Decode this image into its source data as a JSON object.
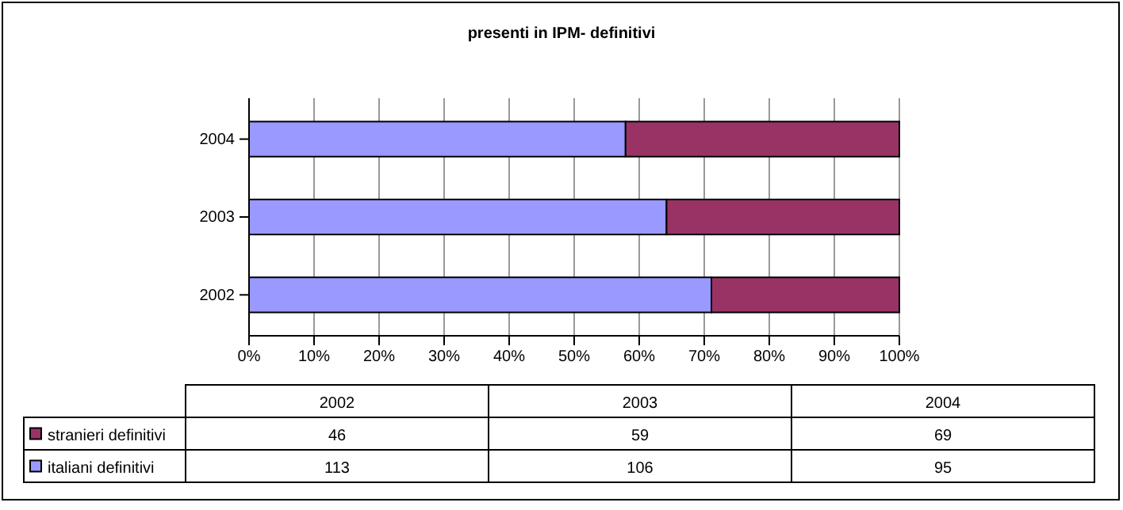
{
  "chart_data": [
    {
      "type": "bar",
      "title": "presenti in IPM- definitivi",
      "orientation": "horizontal",
      "stacked": true,
      "categories": [
        "2004",
        "2003",
        "2002"
      ],
      "series": [
        {
          "color": "#9999ff",
          "values": [
            57.9,
            64.2,
            71.1
          ]
        },
        {
          "color": "#993366",
          "values": [
            42.1,
            35.8,
            28.9
          ]
        }
      ],
      "xlim": [
        0,
        100
      ],
      "xticks": [
        {
          "value": 0,
          "label": "0%"
        },
        {
          "value": 10,
          "label": "10%"
        },
        {
          "value": 20,
          "label": "20%"
        },
        {
          "value": 30,
          "label": "30%"
        },
        {
          "value": 40,
          "label": "40%"
        },
        {
          "value": 50,
          "label": "50%"
        },
        {
          "value": 60,
          "label": "60%"
        },
        {
          "value": 70,
          "label": "70%"
        },
        {
          "value": 80,
          "label": "80%"
        },
        {
          "value": 90,
          "label": "90%"
        },
        {
          "value": 100,
          "label": "100%"
        }
      ],
      "grid": "x"
    },
    {
      "type": "other",
      "categories": [
        "2002",
        "2003",
        "2004"
      ],
      "series": [
        {
          "name": "stranieri definitivi",
          "color": "#993366",
          "values": [
            46,
            59,
            69
          ]
        },
        {
          "name": "italiani definitivi",
          "color": "#9999ff",
          "values": [
            113,
            106,
            95
          ]
        }
      ],
      "data_labels": true,
      "legend": "bottom"
    }
  ]
}
